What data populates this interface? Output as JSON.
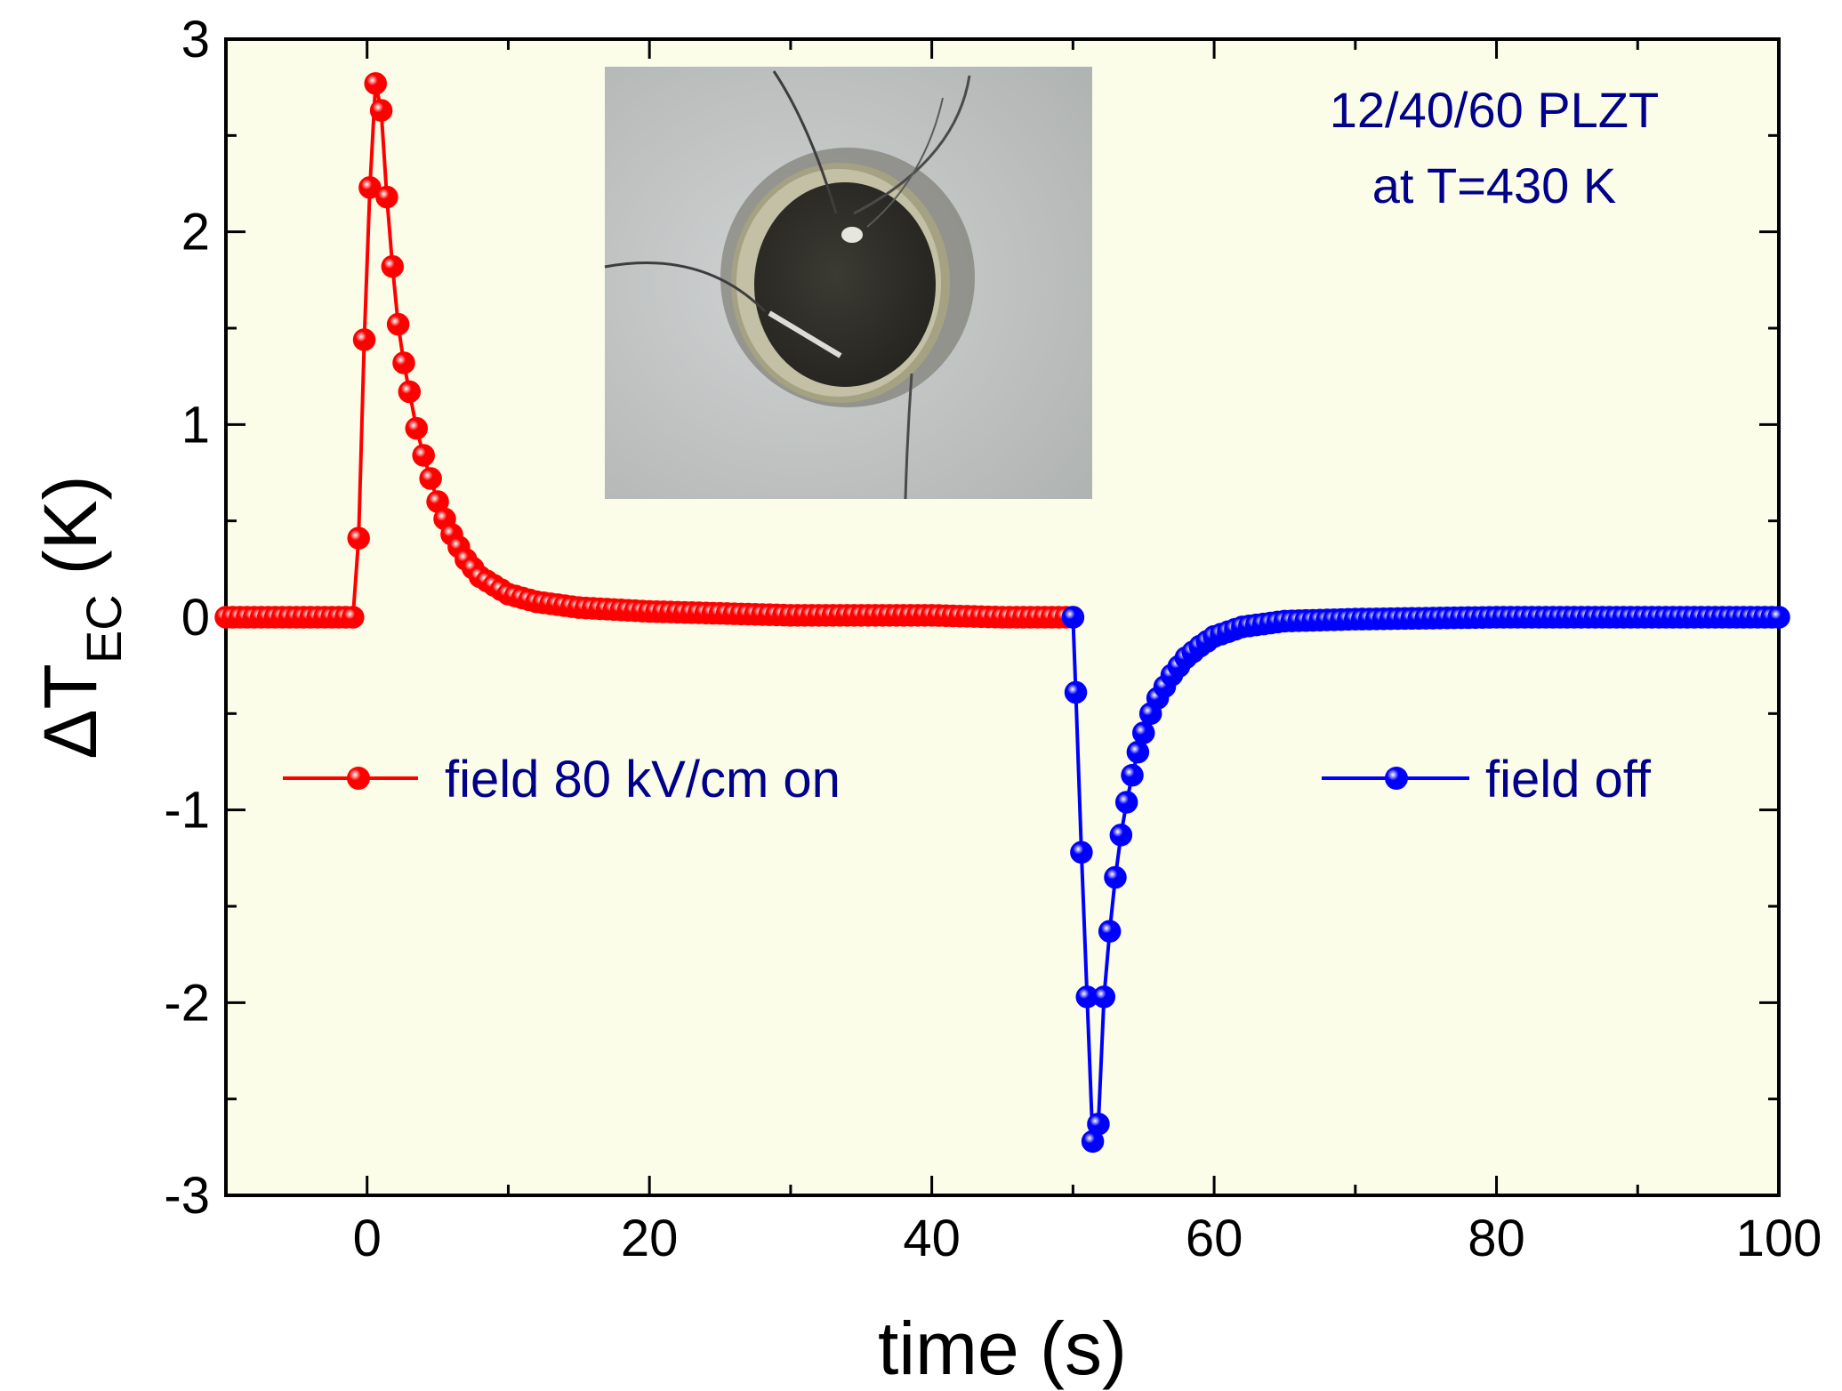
{
  "chart_data": {
    "type": "scatter",
    "xlabel": "time (s)",
    "ylabel": {
      "main": "ΔT",
      "sub": "EC",
      "unit": "(K)"
    },
    "xlim": [
      -10,
      100
    ],
    "ylim": [
      -3,
      3
    ],
    "x_ticks": [
      0,
      20,
      40,
      60,
      80,
      100
    ],
    "x_tick_labels": [
      "0",
      "20",
      "40",
      "60",
      "80",
      "100"
    ],
    "y_ticks": [
      -3,
      -2,
      -1,
      0,
      1,
      2,
      3
    ],
    "y_tick_labels": [
      "-3",
      "-2",
      "-1",
      "0",
      "1",
      "2",
      "3"
    ],
    "grid": false,
    "plot_background": "#fbfde9",
    "series": [
      {
        "name": "field 80 kV/cm on",
        "color": "#ff0000",
        "x": [
          -10,
          -8,
          -6,
          -4,
          -2,
          -1,
          -0.6,
          -0.2,
          0.2,
          0.6,
          1.0,
          1.4,
          1.8,
          2.2,
          2.6,
          3.0,
          3.5,
          4.0,
          4.5,
          5.0,
          5.5,
          6.0,
          7.0,
          8.0,
          10.0,
          12.0,
          15.0,
          20.0,
          25.0,
          30.0,
          35.0,
          40.0,
          45.0,
          50.0
        ],
        "y": [
          0.0,
          0.0,
          0.0,
          0.0,
          0.0,
          0.0,
          0.41,
          1.44,
          2.23,
          2.77,
          2.63,
          2.18,
          1.82,
          1.52,
          1.32,
          1.17,
          0.98,
          0.84,
          0.72,
          0.6,
          0.51,
          0.43,
          0.3,
          0.21,
          0.12,
          0.08,
          0.05,
          0.03,
          0.02,
          0.01,
          0.01,
          0.01,
          0.0,
          0.0
        ]
      },
      {
        "name": "field off",
        "color": "#0000ff",
        "x": [
          50.0,
          50.2,
          50.6,
          51.0,
          51.4,
          51.8,
          52.2,
          52.6,
          53.0,
          53.4,
          53.8,
          54.2,
          54.6,
          55.0,
          55.5,
          56.0,
          57.0,
          58.0,
          59.0,
          60.0,
          62.0,
          65.0,
          70.0,
          80.0,
          90.0,
          100.0
        ],
        "y": [
          0.0,
          -0.39,
          -1.22,
          -1.97,
          -2.72,
          -2.63,
          -1.97,
          -1.63,
          -1.35,
          -1.13,
          -0.96,
          -0.82,
          -0.7,
          -0.6,
          -0.5,
          -0.42,
          -0.3,
          -0.21,
          -0.15,
          -0.1,
          -0.05,
          -0.02,
          -0.01,
          0.0,
          0.0,
          0.0
        ]
      }
    ],
    "annotations": [
      "12/40/60 PLZT",
      "at T=430 K"
    ],
    "legend_placement": "left and right, mid-height",
    "inset": "photograph of round sample disk with electrode and wires"
  }
}
